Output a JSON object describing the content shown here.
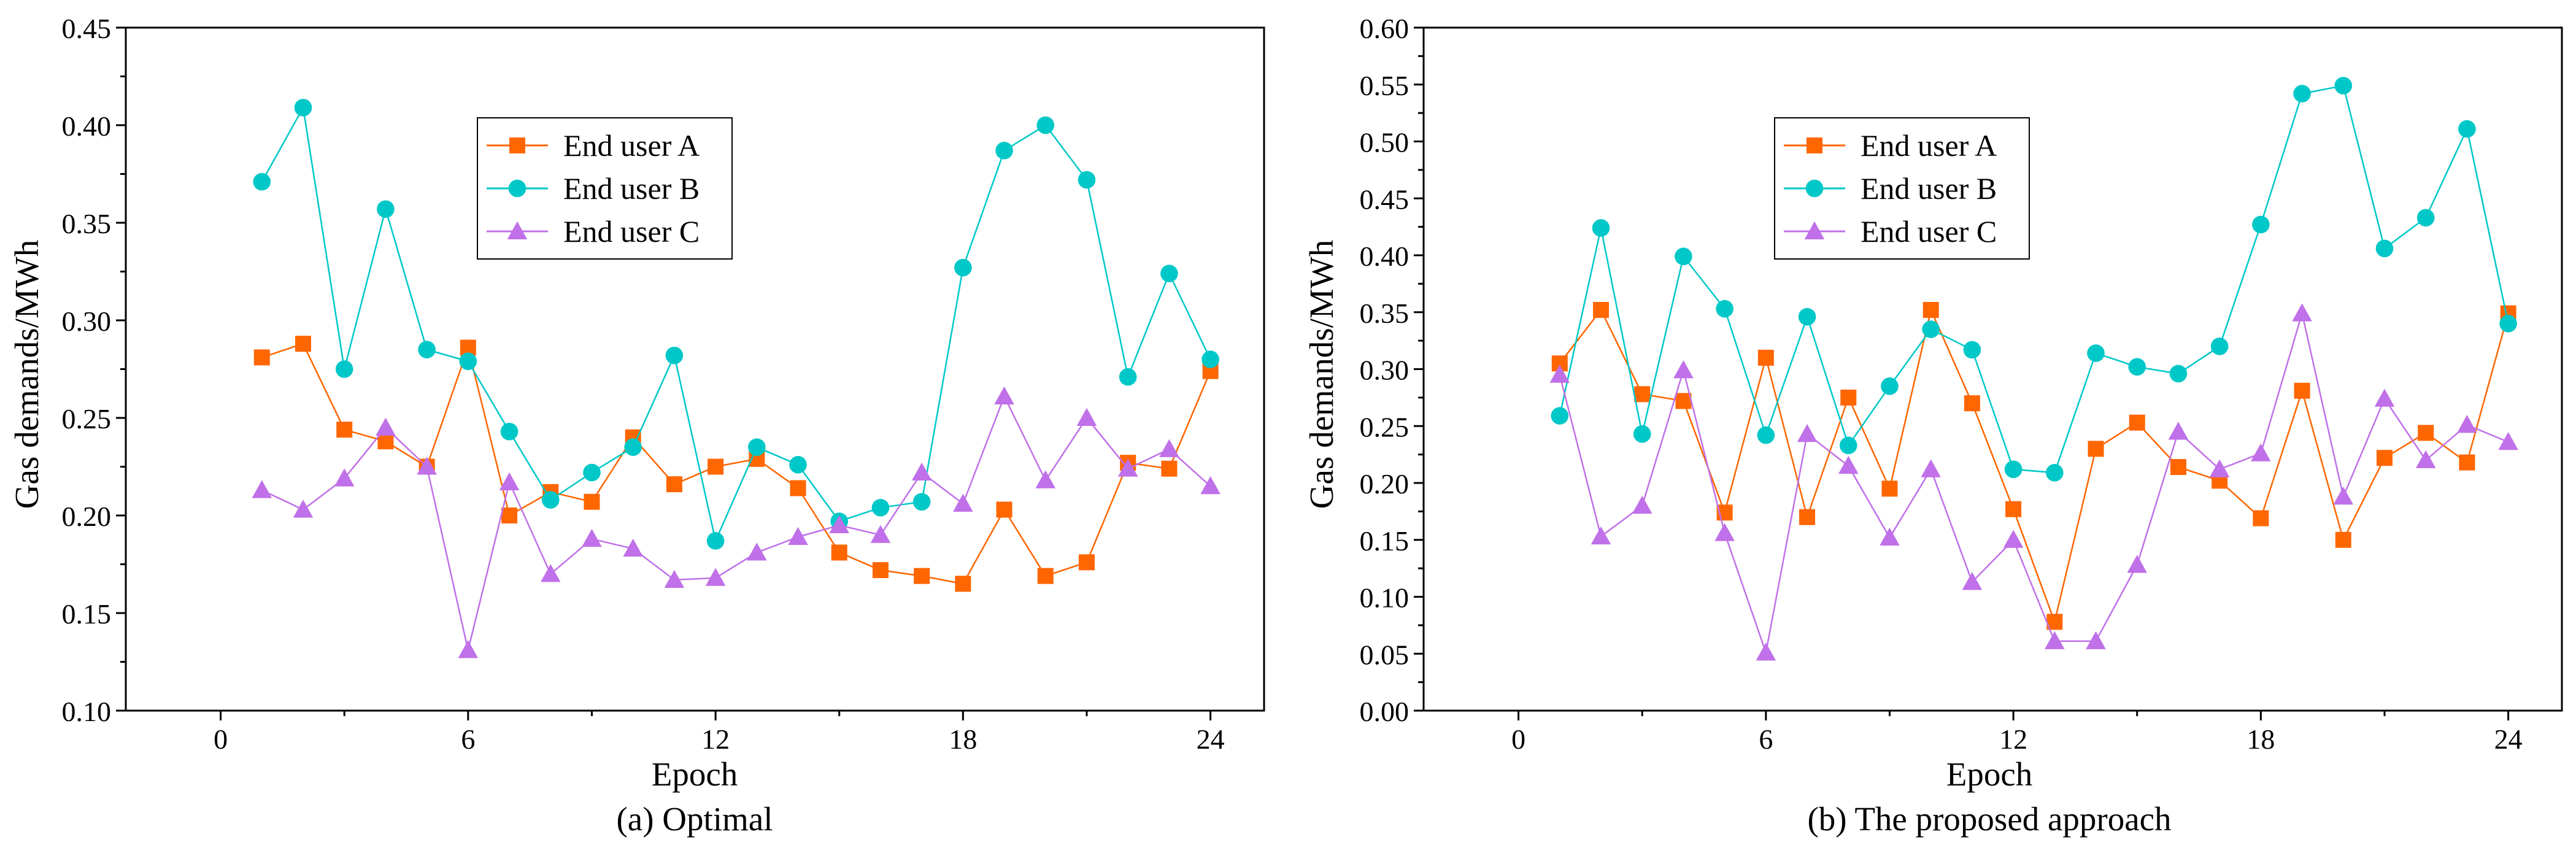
{
  "chart_data": [
    {
      "type": "line",
      "title": "",
      "caption": "(a) Optimal",
      "xlabel": "Epoch",
      "ylabel": "Gas demands/MWh",
      "xlim": [
        -2.3,
        25.3
      ],
      "ylim": [
        0.1,
        0.45
      ],
      "xticks": [
        "0",
        "6",
        "12",
        "18",
        "24"
      ],
      "yticks": [
        "0.10",
        "0.15",
        "0.20",
        "0.25",
        "0.30",
        "0.35",
        "0.40",
        "0.45"
      ],
      "legend_position": "upper-middle",
      "x": [
        1,
        2,
        3,
        4,
        5,
        6,
        7,
        8,
        9,
        10,
        11,
        12,
        13,
        14,
        15,
        16,
        17,
        18,
        19,
        20,
        21,
        22,
        23,
        24
      ],
      "series": [
        {
          "name": "End user A",
          "color": "#ff6600",
          "marker": "square",
          "values": [
            0.281,
            0.288,
            0.244,
            0.238,
            0.225,
            0.286,
            0.2,
            0.212,
            0.207,
            0.24,
            0.216,
            0.225,
            0.229,
            0.214,
            0.181,
            0.172,
            0.169,
            0.165,
            0.203,
            0.169,
            0.176,
            0.227,
            0.224,
            0.274
          ]
        },
        {
          "name": "End user B",
          "color": "#00c8c8",
          "marker": "circle",
          "values": [
            0.371,
            0.409,
            0.275,
            0.357,
            0.285,
            0.279,
            0.243,
            0.208,
            0.222,
            0.235,
            0.282,
            0.187,
            0.235,
            0.226,
            0.197,
            0.204,
            0.207,
            0.327,
            0.387,
            0.4,
            0.372,
            0.271,
            0.324,
            0.28
          ]
        },
        {
          "name": "End user C",
          "color": "#c070e8",
          "marker": "triangle",
          "values": [
            0.213,
            0.203,
            0.219,
            0.245,
            0.225,
            0.131,
            0.217,
            0.17,
            0.188,
            0.183,
            0.167,
            0.168,
            0.181,
            0.189,
            0.195,
            0.19,
            0.222,
            0.206,
            0.261,
            0.218,
            0.25,
            0.224,
            0.234,
            0.215
          ]
        }
      ]
    },
    {
      "type": "line",
      "title": "",
      "caption": "(b) The proposed approach",
      "xlabel": "Epoch",
      "ylabel": "Gas demands/MWh",
      "xlim": [
        -2.3,
        25.3
      ],
      "ylim": [
        0.0,
        0.6
      ],
      "xticks": [
        "0",
        "6",
        "12",
        "18",
        "24"
      ],
      "yticks": [
        "0.00",
        "0.05",
        "0.10",
        "0.15",
        "0.20",
        "0.25",
        "0.30",
        "0.35",
        "0.40",
        "0.45",
        "0.50",
        "0.55",
        "0.60"
      ],
      "legend_position": "upper-middle",
      "x": [
        1,
        2,
        3,
        4,
        5,
        6,
        7,
        8,
        9,
        10,
        11,
        12,
        13,
        14,
        15,
        16,
        17,
        18,
        19,
        20,
        21,
        22,
        23,
        24
      ],
      "series": [
        {
          "name": "End user A",
          "color": "#ff6600",
          "marker": "square",
          "values": [
            0.305,
            0.352,
            0.278,
            0.272,
            0.174,
            0.31,
            0.17,
            0.275,
            0.195,
            0.352,
            0.27,
            0.177,
            0.078,
            0.23,
            0.253,
            0.214,
            0.202,
            0.169,
            0.281,
            0.15,
            0.222,
            0.244,
            0.218,
            0.349
          ]
        },
        {
          "name": "End user B",
          "color": "#00c8c8",
          "marker": "circle",
          "values": [
            0.259,
            0.424,
            0.243,
            0.399,
            0.353,
            0.242,
            0.346,
            0.233,
            0.285,
            0.335,
            0.317,
            0.212,
            0.209,
            0.314,
            0.302,
            0.296,
            0.32,
            0.427,
            0.542,
            0.549,
            0.406,
            0.433,
            0.511,
            0.34
          ]
        },
        {
          "name": "End user C",
          "color": "#c070e8",
          "marker": "triangle",
          "values": [
            0.295,
            0.153,
            0.18,
            0.299,
            0.156,
            0.051,
            0.243,
            0.215,
            0.152,
            0.212,
            0.113,
            0.15,
            0.061,
            0.061,
            0.128,
            0.245,
            0.212,
            0.226,
            0.349,
            0.188,
            0.274,
            0.22,
            0.251,
            0.236
          ]
        }
      ]
    }
  ]
}
